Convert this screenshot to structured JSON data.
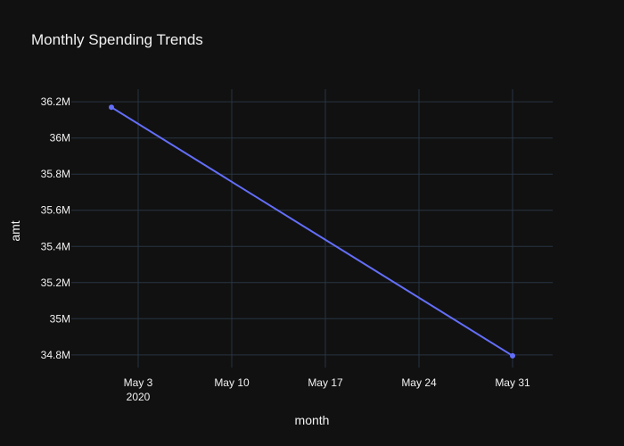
{
  "chart_data": {
    "type": "line",
    "title": "Monthly Spending Trends",
    "xlabel": "month",
    "ylabel": "amt",
    "x_tick_labels": [
      "May 3",
      "May 10",
      "May 17",
      "May 24",
      "May 31"
    ],
    "x_tick_dates": [
      "2020-05-03",
      "2020-05-10",
      "2020-05-17",
      "2020-05-24",
      "2020-05-31"
    ],
    "x_tick_sublabel": "2020",
    "y_tick_labels": [
      "34.8M",
      "35M",
      "35.2M",
      "35.4M",
      "35.6M",
      "35.8M",
      "36M",
      "36.2M"
    ],
    "y_tick_values": [
      34800000,
      35000000,
      35200000,
      35400000,
      35600000,
      35800000,
      36000000,
      36200000
    ],
    "xlim": [
      "2020-04-28",
      "2020-06-03"
    ],
    "ylim": [
      34730000,
      36270000
    ],
    "grid": true,
    "series": [
      {
        "x": [
          "2020-05-01",
          "2020-05-31"
        ],
        "values": [
          36170000,
          34795000
        ],
        "color": "#636efa"
      }
    ]
  }
}
